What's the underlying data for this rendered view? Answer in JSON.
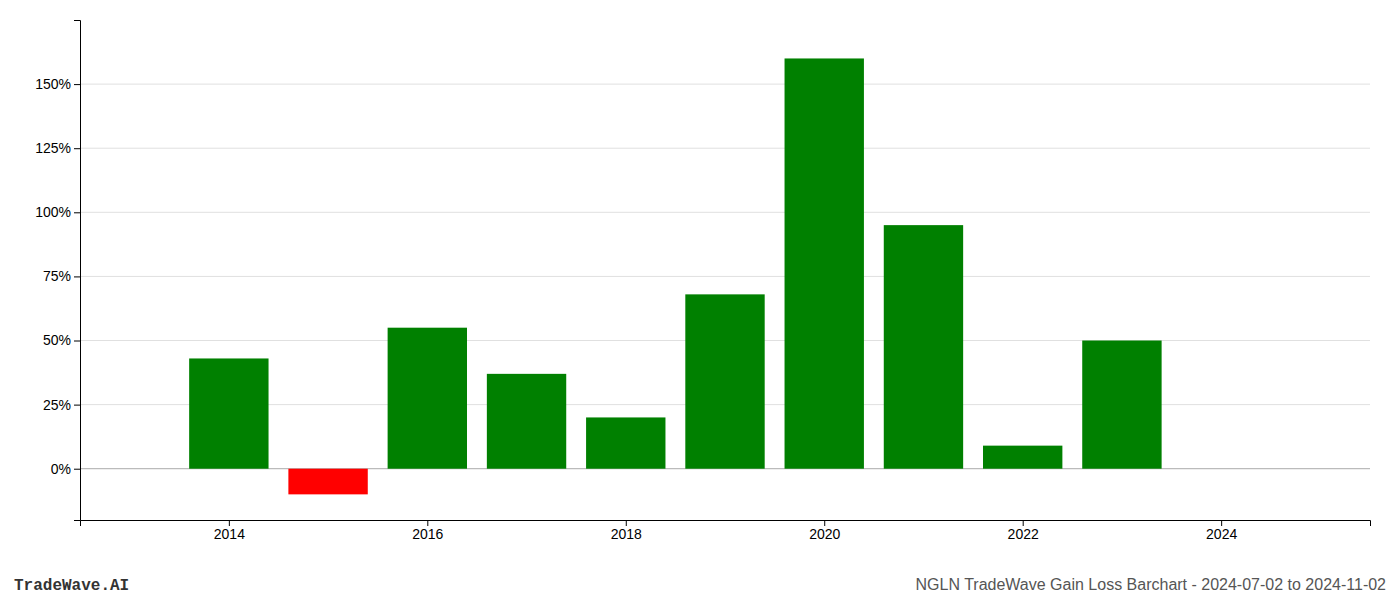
{
  "chart_data": {
    "type": "bar",
    "x": [
      2014,
      2015,
      2016,
      2017,
      2018,
      2019,
      2020,
      2021,
      2022,
      2023
    ],
    "values": [
      0.43,
      -0.1,
      0.55,
      0.37,
      0.2,
      0.68,
      1.6,
      0.95,
      0.09,
      0.5
    ],
    "colors": [
      "#008000",
      "#ff0000",
      "#008000",
      "#008000",
      "#008000",
      "#008000",
      "#008000",
      "#008000",
      "#008000",
      "#008000"
    ],
    "xlim": [
      2012.5,
      2025.5
    ],
    "xticks": [
      2014,
      2016,
      2018,
      2020,
      2022,
      2024
    ],
    "ylim": [
      -0.2,
      1.75
    ],
    "yticks": [
      {
        "value": 0,
        "label": "0%"
      },
      {
        "value": 0.25,
        "label": "25%"
      },
      {
        "value": 0.5,
        "label": "50%"
      },
      {
        "value": 0.75,
        "label": "75%"
      },
      {
        "value": 1.0,
        "label": "100%"
      },
      {
        "value": 1.25,
        "label": "125%"
      },
      {
        "value": 1.5,
        "label": "150%"
      }
    ],
    "grid": true,
    "annotations": [
      "TradeWave.AI",
      "NGLN TradeWave Gain Loss Barchart - 2024-07-02 to 2024-11-02"
    ]
  }
}
